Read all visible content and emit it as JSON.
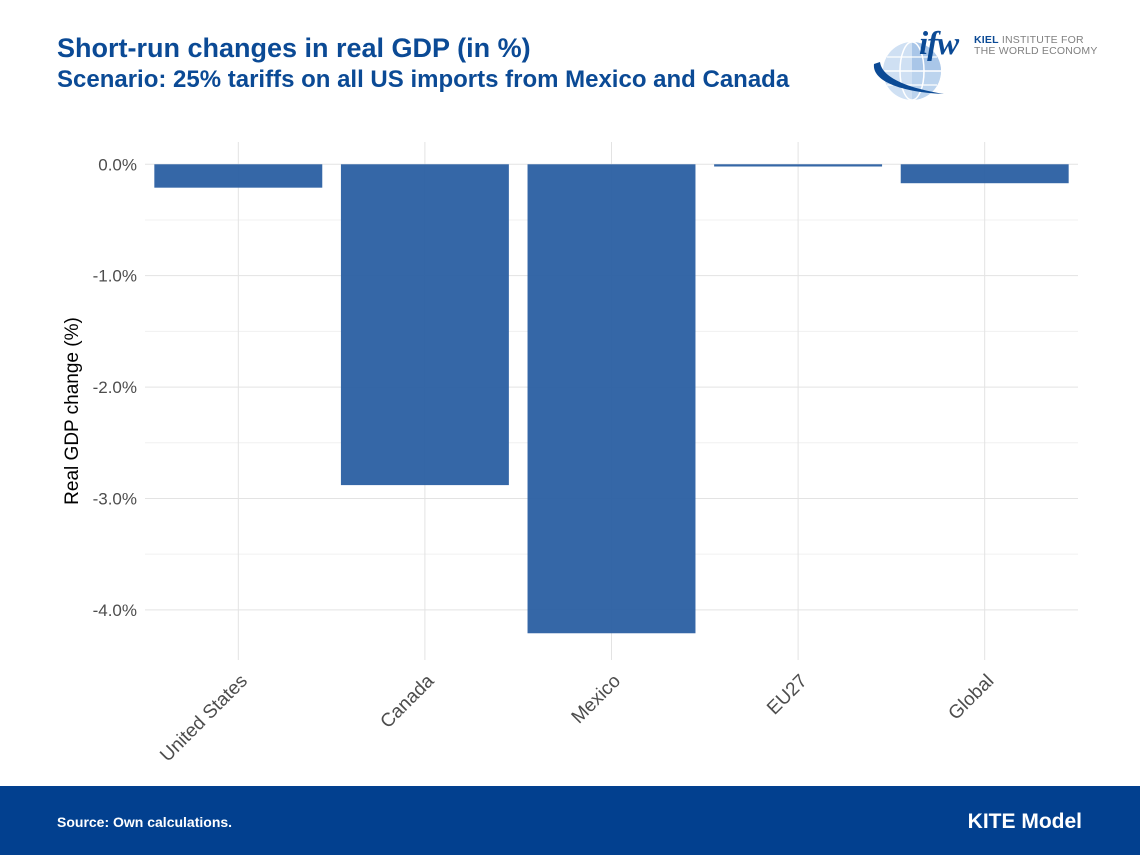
{
  "header": {
    "title": "Short-run changes in real GDP (in %)",
    "subtitle": "Scenario: 25% tariffs on all US imports from Mexico and Canada"
  },
  "logo": {
    "mark": "ifw",
    "line1_bold": "KIEL",
    "line1_rest": " INSTITUTE FOR",
    "line2": "THE WORLD ECONOMY"
  },
  "chart_data": {
    "type": "bar",
    "title": "Short-run changes in real GDP (in %)",
    "subtitle": "Scenario: 25% tariffs on all US imports from Mexico and Canada",
    "categories": [
      "United States",
      "Canada",
      "Mexico",
      "EU27",
      "Global"
    ],
    "values": [
      -0.21,
      -2.88,
      -4.21,
      -0.02,
      -0.17
    ],
    "ylabel": "Real GDP change (%)",
    "xlabel": "",
    "ylim": [
      -4.45,
      0.2
    ],
    "yticks": [
      0,
      -1,
      -2,
      -3,
      -4
    ],
    "ytick_labels": [
      "0.0%",
      "-1.0%",
      "-2.0%",
      "-3.0%",
      "-4.0%"
    ],
    "bar_color": "#2e62a4",
    "grid": true,
    "legend": "none"
  },
  "footer": {
    "source": "Source: Own calculations.",
    "model": "KITE Model",
    "background": "#02408f"
  }
}
